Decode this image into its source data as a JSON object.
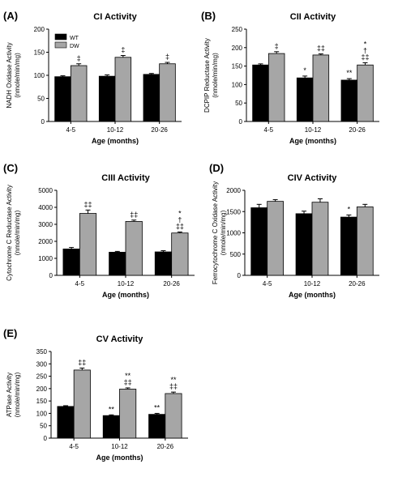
{
  "colors": {
    "wt": "#000000",
    "dw": "#a6a6a6"
  },
  "legend": [
    {
      "name": "WT",
      "color": "#000000"
    },
    {
      "name": "DW",
      "color": "#a6a6a6"
    }
  ],
  "chart_data": [
    {
      "type": "bar",
      "panel": "(A)",
      "title": "CI Activity",
      "xlabel": "Age  (months)",
      "ylabel": [
        "NADH Oxidase Activity",
        "(nmole/min/mg)"
      ],
      "ylim": [
        0,
        200
      ],
      "yticks": [
        0,
        50,
        100,
        150,
        200
      ],
      "categories": [
        "4-5",
        "10-12",
        "20-26"
      ],
      "legend": true,
      "series": [
        {
          "name": "WT",
          "values": [
            97,
            98,
            102
          ],
          "errors": [
            2,
            3,
            2
          ],
          "sig": [
            [],
            [],
            []
          ]
        },
        {
          "name": "DW",
          "values": [
            121,
            139,
            125
          ],
          "errors": [
            4,
            4,
            3
          ],
          "sig": [
            [
              "‡"
            ],
            [
              "‡"
            ],
            [
              "‡"
            ]
          ]
        }
      ]
    },
    {
      "type": "bar",
      "panel": "(B)",
      "title": "CII Activity",
      "xlabel": "Age  (months)",
      "ylabel": [
        "DCPIP Reductase Activity",
        "(nmole/min/mg)"
      ],
      "ylim": [
        0,
        250
      ],
      "yticks": [
        0,
        50,
        100,
        150,
        200,
        250
      ],
      "categories": [
        "4-5",
        "10-12",
        "20-26"
      ],
      "legend": false,
      "series": [
        {
          "name": "WT",
          "values": [
            153,
            118,
            112
          ],
          "errors": [
            3,
            5,
            4
          ],
          "sig": [
            [],
            [
              "*"
            ],
            [
              "**"
            ]
          ]
        },
        {
          "name": "DW",
          "values": [
            184,
            180,
            153
          ],
          "errors": [
            5,
            3,
            6
          ],
          "sig": [
            [
              "‡"
            ],
            [
              "‡‡"
            ],
            [
              "*",
              "†",
              "‡‡"
            ]
          ]
        }
      ]
    },
    {
      "type": "bar",
      "panel": "(C)",
      "title": "CIII Activity",
      "xlabel": "Age  (months)",
      "ylabel": [
        "Cytochrome C Reductase Activity",
        "(nmole/min/mg)"
      ],
      "ylim": [
        0,
        5000
      ],
      "yticks": [
        0,
        1000,
        2000,
        3000,
        4000,
        5000
      ],
      "categories": [
        "4-5",
        "10-12",
        "20-26"
      ],
      "legend": false,
      "series": [
        {
          "name": "WT",
          "values": [
            1550,
            1360,
            1380
          ],
          "errors": [
            90,
            50,
            70
          ],
          "sig": [
            [],
            [],
            []
          ]
        },
        {
          "name": "DW",
          "values": [
            3640,
            3170,
            2490
          ],
          "errors": [
            200,
            80,
            60
          ],
          "sig": [
            [
              "‡‡"
            ],
            [
              "‡‡"
            ],
            [
              "*",
              "†",
              "‡‡"
            ]
          ]
        }
      ]
    },
    {
      "type": "bar",
      "panel": "(D)",
      "title": "CIV Activity",
      "xlabel": "Age  (months)",
      "ylabel": [
        "Ferrocytochrome C Oxidase Activity",
        "(nmole/min/mg)"
      ],
      "ylim": [
        0,
        2000
      ],
      "yticks": [
        0,
        500,
        1000,
        1500,
        2000
      ],
      "categories": [
        "4-5",
        "10-12",
        "20-26"
      ],
      "legend": false,
      "series": [
        {
          "name": "WT",
          "values": [
            1590,
            1450,
            1370
          ],
          "errors": [
            80,
            60,
            50
          ],
          "sig": [
            [],
            [],
            [
              "*"
            ]
          ]
        },
        {
          "name": "DW",
          "values": [
            1740,
            1720,
            1610
          ],
          "errors": [
            40,
            80,
            60
          ],
          "sig": [
            [],
            [],
            []
          ]
        }
      ]
    },
    {
      "type": "bar",
      "panel": "(E)",
      "title": "CV Activity",
      "xlabel": "Age  (months)",
      "ylabel": [
        "ATPase Activity",
        "(nmole/min/mg)"
      ],
      "ylim": [
        0,
        350
      ],
      "yticks": [
        0,
        50,
        100,
        150,
        200,
        250,
        300,
        350
      ],
      "categories": [
        "4-5",
        "10-12",
        "20-26"
      ],
      "legend": false,
      "series": [
        {
          "name": "WT",
          "values": [
            128,
            91,
            96
          ],
          "errors": [
            3,
            3,
            4
          ],
          "sig": [
            [],
            [
              "**"
            ],
            [
              "**"
            ]
          ]
        },
        {
          "name": "DW",
          "values": [
            275,
            198,
            180
          ],
          "errors": [
            8,
            5,
            6
          ],
          "sig": [
            [
              "‡‡"
            ],
            [
              "**",
              "‡‡"
            ],
            [
              "**",
              "‡‡"
            ]
          ]
        }
      ]
    }
  ]
}
